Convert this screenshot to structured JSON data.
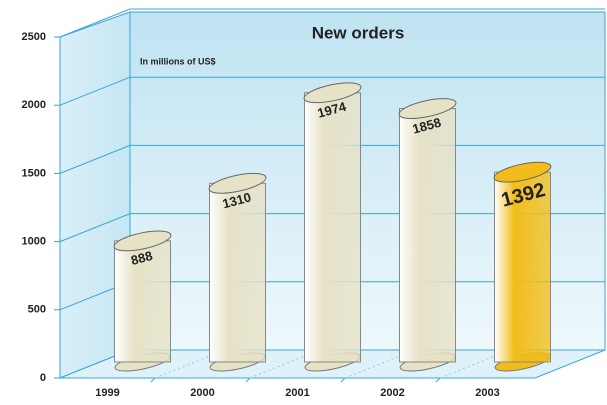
{
  "chart_data": {
    "type": "bar",
    "title": "New orders",
    "subtitle": "In millions of US$",
    "categories": [
      "1999",
      "2000",
      "2001",
      "2002",
      "2003"
    ],
    "values": [
      888,
      1310,
      1974,
      1858,
      1392
    ],
    "colors": [
      "#e6e2c6",
      "#e6e2c6",
      "#e6e2c6",
      "#e6e2c6",
      "#f2bd1a"
    ],
    "ylim": [
      0,
      2500
    ],
    "yticks": [
      0,
      500,
      1000,
      1500,
      2000,
      2500
    ],
    "grid": true
  }
}
